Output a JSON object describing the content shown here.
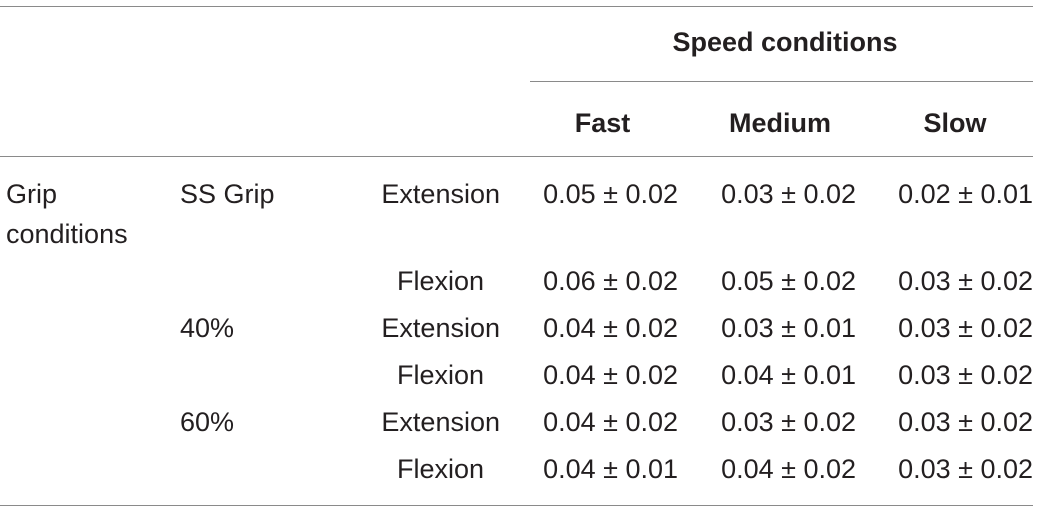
{
  "table": {
    "spanning_header": "Speed conditions",
    "column_headers": [
      "Fast",
      "Medium",
      "Slow"
    ],
    "row_group_label": [
      "Grip",
      "conditions"
    ],
    "rows": [
      {
        "grip": "SS Grip",
        "direction": "Extension",
        "values": [
          "0.05 ± 0.02",
          "0.03 ± 0.02",
          "0.02 ± 0.01"
        ]
      },
      {
        "grip": "",
        "direction": "Flexion",
        "values": [
          "0.06 ± 0.02",
          "0.05 ± 0.02",
          "0.03 ± 0.02"
        ]
      },
      {
        "grip": "40%",
        "direction": "Extension",
        "values": [
          "0.04 ± 0.02",
          "0.03 ± 0.01",
          "0.03 ± 0.02"
        ]
      },
      {
        "grip": "",
        "direction": "Flexion",
        "values": [
          "0.04 ± 0.02",
          "0.04 ± 0.01",
          "0.03 ± 0.02"
        ]
      },
      {
        "grip": "60%",
        "direction": "Extension",
        "values": [
          "0.04 ± 0.02",
          "0.03 ± 0.02",
          "0.03 ± 0.02"
        ]
      },
      {
        "grip": "",
        "direction": "Flexion",
        "values": [
          "0.04 ± 0.01",
          "0.04 ± 0.02",
          "0.03 ± 0.02"
        ]
      }
    ]
  }
}
